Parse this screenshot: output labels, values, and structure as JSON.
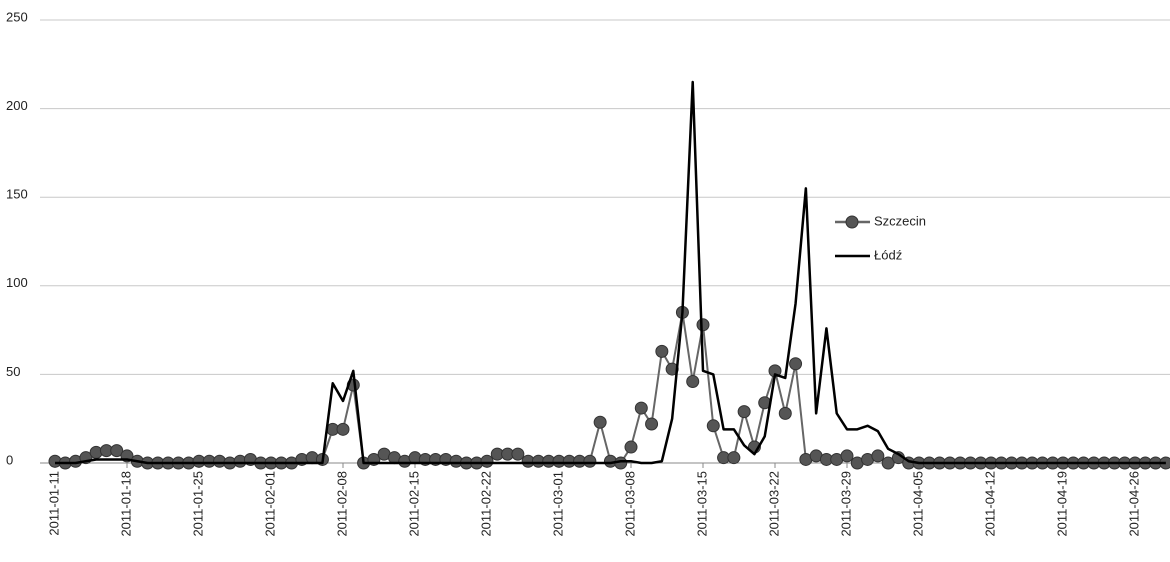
{
  "chart_data": {
    "type": "line",
    "categories": [
      "2011-01-11",
      null,
      null,
      null,
      null,
      null,
      null,
      "2011-01-18",
      null,
      null,
      null,
      null,
      null,
      null,
      "2011-01-25",
      null,
      null,
      null,
      null,
      null,
      null,
      "2011-02-01",
      null,
      null,
      null,
      null,
      null,
      null,
      "2011-02-08",
      null,
      null,
      null,
      null,
      null,
      null,
      "2011-02-15",
      null,
      null,
      null,
      null,
      null,
      null,
      "2011-02-22",
      null,
      null,
      null,
      null,
      null,
      null,
      "2011-03-01",
      null,
      null,
      null,
      null,
      null,
      null,
      "2011-03-08",
      null,
      null,
      null,
      null,
      null,
      null,
      "2011-03-15",
      null,
      null,
      null,
      null,
      null,
      null,
      "2011-03-22",
      null,
      null,
      null,
      null,
      null,
      null,
      "2011-03-29",
      null,
      null,
      null,
      null,
      null,
      null,
      "2011-04-05",
      null,
      null,
      null,
      null,
      null,
      null,
      "2011-04-12",
      null,
      null,
      null,
      null,
      null,
      null,
      "2011-04-19",
      null,
      null,
      null,
      null,
      null,
      null,
      "2011-04-26",
      null,
      null,
      null
    ],
    "series": [
      {
        "name": "Szczecin",
        "color": "#666666",
        "marker": true,
        "values": [
          1,
          0,
          1,
          3,
          6,
          7,
          7,
          4,
          1,
          0,
          0,
          0,
          0,
          0,
          1,
          1,
          1,
          0,
          1,
          2,
          0,
          0,
          0,
          0,
          2,
          3,
          2,
          19,
          19,
          44,
          0,
          2,
          5,
          3,
          1,
          3,
          2,
          2,
          2,
          1,
          0,
          0,
          1,
          5,
          5,
          5,
          1,
          1,
          1,
          1,
          1,
          1,
          1,
          23,
          1,
          0,
          9,
          31,
          22,
          63,
          53,
          85,
          46,
          78,
          21,
          3,
          3,
          29,
          9,
          34,
          52,
          28,
          56,
          2,
          4,
          2,
          2,
          4,
          0,
          2,
          4,
          0,
          3,
          0,
          0,
          0,
          0,
          0,
          0,
          0,
          0,
          0,
          0,
          0,
          0,
          0,
          0,
          0,
          0,
          0,
          0,
          0,
          0,
          0,
          0,
          0,
          0,
          0,
          0
        ]
      },
      {
        "name": "Łódź",
        "color": "#000000",
        "marker": false,
        "values": [
          0,
          0,
          0,
          1,
          2,
          2,
          2,
          2,
          1,
          0,
          0,
          0,
          0,
          0,
          0,
          0,
          0,
          0,
          0,
          0,
          0,
          0,
          0,
          0,
          0,
          0,
          0,
          45,
          35,
          52,
          0,
          0,
          0,
          0,
          0,
          0,
          0,
          0,
          0,
          0,
          0,
          0,
          0,
          0,
          0,
          0,
          0,
          0,
          0,
          0,
          0,
          0,
          0,
          0,
          0,
          1,
          1,
          0,
          0,
          1,
          25,
          85,
          215,
          52,
          50,
          19,
          19,
          10,
          5,
          15,
          50,
          48,
          90,
          155,
          28,
          76,
          28,
          19,
          19,
          21,
          18,
          8,
          5,
          1,
          0,
          0,
          0,
          0,
          0,
          0,
          0,
          0,
          0,
          0,
          0,
          0,
          0,
          0,
          0,
          0,
          0,
          0,
          0,
          0,
          0,
          0,
          0,
          0,
          0
        ]
      }
    ],
    "ylim": [
      0,
      250
    ],
    "yticks": [
      0,
      50,
      100,
      150,
      200,
      250
    ],
    "grid": true
  }
}
